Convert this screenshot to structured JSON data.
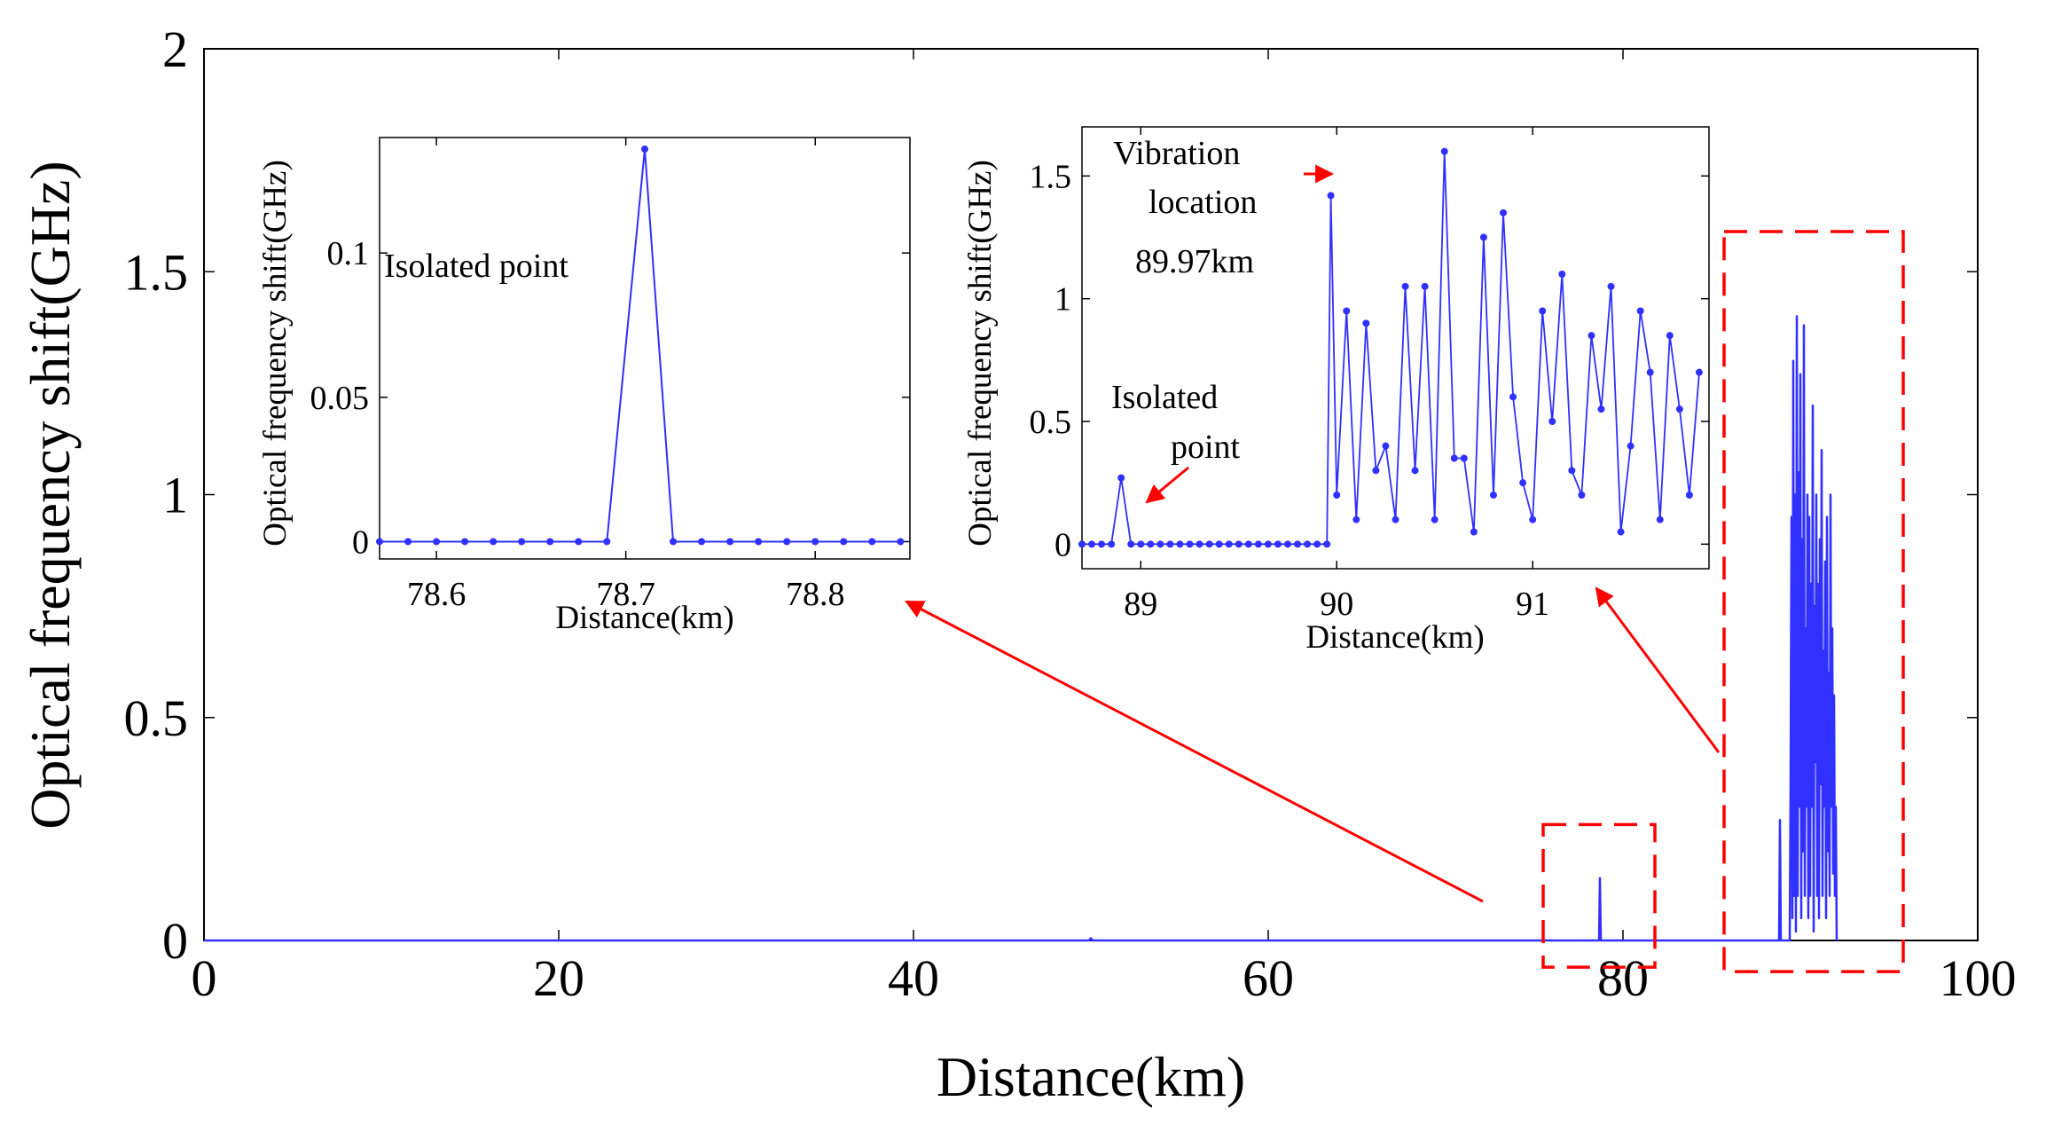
{
  "chart_data": [
    {
      "id": "main",
      "type": "line",
      "xlabel": "Distance(km)",
      "ylabel": "Optical frequency shift(GHz)",
      "xlim": [
        0,
        100
      ],
      "ylim": [
        0,
        2
      ],
      "xticks": [
        0,
        20,
        40,
        60,
        80,
        100
      ],
      "xtick_labels": [
        "0",
        "20",
        "40",
        "60",
        "80",
        "100"
      ],
      "yticks": [
        0,
        0.5,
        1,
        1.5,
        2
      ],
      "ytick_labels": [
        "0",
        "0.5",
        "1",
        "1.5",
        "2"
      ],
      "grid": false,
      "series_color": "#3030ff",
      "highlight_color": "#ff0000",
      "series": [
        {
          "x": [
            0,
            49.9,
            50.0,
            50.1,
            78.65,
            78.7,
            78.75,
            88.8,
            88.85,
            88.9,
            89.4,
            89.45,
            89.5,
            89.55,
            89.6,
            89.65,
            89.7,
            89.75,
            89.8,
            89.85,
            89.9,
            89.95,
            90.0,
            90.05,
            90.1,
            90.15,
            90.2,
            90.25,
            90.3,
            90.35,
            90.4,
            90.45,
            90.5,
            90.55,
            90.6,
            90.65,
            90.7,
            90.75,
            90.8,
            90.85,
            90.9,
            90.95,
            91.0,
            91.05,
            91.1,
            91.15,
            91.2,
            91.25,
            91.3,
            91.35,
            91.4,
            91.45,
            91.5,
            91.55,
            91.6,
            91.65,
            91.7,
            91.75,
            91.8,
            91.85,
            91.9,
            91.95,
            92.0,
            92.05
          ],
          "y": [
            0,
            0,
            0.005,
            0,
            0,
            0.14,
            0,
            0,
            0.27,
            0,
            0,
            0.35,
            0.95,
            0.05,
            1.3,
            0.1,
            1.0,
            0.02,
            1.4,
            0.1,
            1.05,
            0.3,
            1.27,
            0.05,
            0.9,
            0.2,
            1.38,
            0.1,
            0.7,
            0.3,
            1.0,
            0.05,
            0.95,
            0.1,
            0.8,
            0.3,
            1.2,
            0.02,
            0.75,
            0.4,
            1.0,
            0.1,
            0.8,
            0.05,
            0.9,
            0.35,
            1.1,
            0.1,
            0.65,
            0.3,
            0.85,
            0.05,
            0.95,
            0.2,
            0.6,
            0.1,
            1.0,
            0.3,
            0.7,
            0.15,
            0.55,
            0.1,
            0.3,
            0
          ]
        }
      ],
      "highlight_boxes": [
        {
          "x_range": [
            75.5,
            81.8
          ],
          "y_range": [
            -0.06,
            0.26
          ]
        },
        {
          "x_range": [
            85.7,
            95.8
          ],
          "y_range": [
            -0.07,
            1.59
          ]
        }
      ]
    },
    {
      "id": "inset-left",
      "type": "line",
      "xlabel": "Distance(km)",
      "ylabel": "Optical frequency shift(GHz)",
      "xlim": [
        78.57,
        78.85
      ],
      "ylim": [
        -0.006,
        0.14
      ],
      "xticks": [
        78.6,
        78.7,
        78.8
      ],
      "xtick_labels": [
        "78.6",
        "78.7",
        "78.8"
      ],
      "yticks": [
        0,
        0.05,
        0.1
      ],
      "ytick_labels": [
        "0",
        "0.05",
        "0.1"
      ],
      "annotations": [
        "Isolated point"
      ],
      "series": [
        {
          "x": [
            78.57,
            78.585,
            78.6,
            78.615,
            78.63,
            78.645,
            78.66,
            78.675,
            78.69,
            78.71,
            78.725,
            78.74,
            78.755,
            78.77,
            78.785,
            78.8,
            78.815,
            78.83,
            78.845
          ],
          "y": [
            0,
            0,
            0,
            0,
            0,
            0,
            0,
            0,
            0,
            0.136,
            0,
            0,
            0,
            0,
            0,
            0,
            0,
            0,
            0
          ]
        }
      ]
    },
    {
      "id": "inset-right",
      "type": "line",
      "xlabel": "Distance(km)",
      "ylabel": "Optical frequency shift(GHz)",
      "xlim": [
        88.7,
        91.9
      ],
      "ylim": [
        -0.1,
        1.7
      ],
      "xticks": [
        89,
        90,
        91
      ],
      "xtick_labels": [
        "89",
        "90",
        "91"
      ],
      "yticks": [
        0,
        0.5,
        1,
        1.5
      ],
      "ytick_labels": [
        "0",
        "0.5",
        "1",
        "1.5"
      ],
      "annotations": {
        "vibration_lines": [
          "Vibration",
          "location",
          "89.97km"
        ],
        "isolated_lines": [
          "Isolated",
          "point"
        ]
      },
      "series": [
        {
          "x": [
            88.7,
            88.75,
            88.8,
            88.85,
            88.9,
            88.95,
            89.0,
            89.05,
            89.1,
            89.15,
            89.2,
            89.25,
            89.3,
            89.35,
            89.4,
            89.45,
            89.5,
            89.55,
            89.6,
            89.65,
            89.7,
            89.75,
            89.8,
            89.85,
            89.9,
            89.95,
            89.97,
            90.0,
            90.05,
            90.1,
            90.15,
            90.2,
            90.25,
            90.3,
            90.35,
            90.4,
            90.45,
            90.5,
            90.55,
            90.6,
            90.65,
            90.7,
            90.75,
            90.8,
            90.85,
            90.9,
            90.95,
            91.0,
            91.05,
            91.1,
            91.15,
            91.2,
            91.25,
            91.3,
            91.35,
            91.4,
            91.45,
            91.5,
            91.55,
            91.6,
            91.65,
            91.7,
            91.75,
            91.8,
            91.85
          ],
          "y": [
            0,
            0,
            0,
            0,
            0.27,
            0,
            0,
            0,
            0,
            0,
            0,
            0,
            0,
            0,
            0,
            0,
            0,
            0,
            0,
            0,
            0,
            0,
            0,
            0,
            0,
            0,
            1.42,
            0.2,
            0.95,
            0.1,
            0.9,
            0.3,
            0.4,
            0.1,
            1.05,
            0.3,
            1.05,
            0.1,
            1.6,
            0.35,
            0.35,
            0.05,
            1.25,
            0.2,
            1.35,
            0.6,
            0.25,
            0.1,
            0.95,
            0.5,
            1.1,
            0.3,
            0.2,
            0.85,
            0.55,
            1.05,
            0.05,
            0.4,
            0.95,
            0.7,
            0.1,
            0.85,
            0.55,
            0.2,
            0.7
          ]
        }
      ]
    }
  ]
}
